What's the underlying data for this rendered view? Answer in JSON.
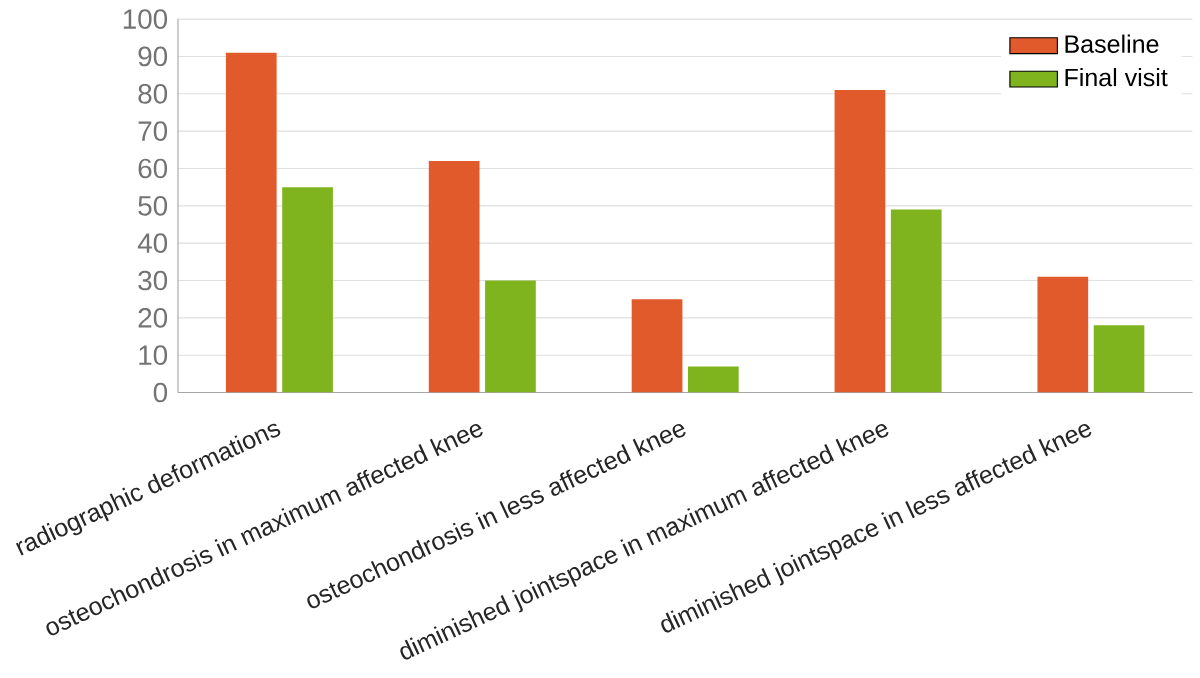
{
  "chart_data": {
    "type": "bar",
    "categories": [
      "radiographic deformations",
      "osteochondrosis in maximum affected knee",
      "osteochondrosis in less affected knee",
      "diminished jointspace in maximum affected knee",
      "diminished jointspace in less affected knee"
    ],
    "series": [
      {
        "name": "Baseline",
        "color": "#e05a2c",
        "values": [
          91,
          62,
          25,
          81,
          31
        ]
      },
      {
        "name": "Final visit",
        "color": "#7fb41e",
        "values": [
          55,
          30,
          7,
          49,
          18
        ]
      }
    ],
    "ylim": [
      0,
      100
    ],
    "yticks": [
      0,
      10,
      20,
      30,
      40,
      50,
      60,
      70,
      80,
      90,
      100
    ],
    "grid": "y",
    "legend": "top right"
  }
}
